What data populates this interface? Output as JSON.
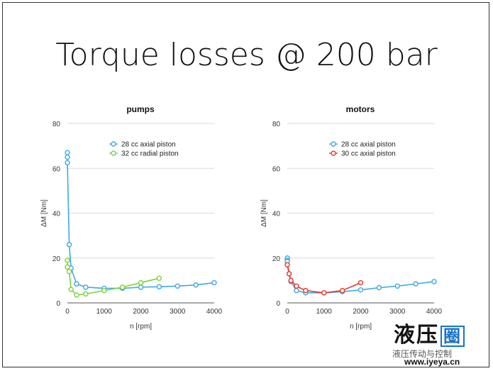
{
  "slide": {
    "title": "Torque losses @ 200 bar"
  },
  "watermark": {
    "logo_text": "液压",
    "logo_box_text": "圈",
    "channel": "液压传动与控制",
    "url": "www.iyeya.cn"
  },
  "colors": {
    "blue": "#3ea9e6",
    "green": "#7ed23b",
    "red": "#e8392a",
    "grid": "#d8d8d8",
    "axis": "#555555"
  },
  "chart_data": [
    {
      "type": "line",
      "title": "pumps",
      "xlabel": "n [rpm]",
      "ylabel": "ΔM [Nm]",
      "xlim": [
        0,
        4000
      ],
      "ylim": [
        0,
        80
      ],
      "xticks": [
        "0",
        "1000",
        "2000",
        "3000",
        "4000"
      ],
      "yticks": [
        "0",
        "20",
        "40",
        "60",
        "80"
      ],
      "grid": "horizontal",
      "legend_position": "top",
      "series": [
        {
          "name": "28 cc axial piston",
          "color": "#3ea9e6",
          "points": [
            [
              0,
              67
            ],
            [
              0,
              65
            ],
            [
              0,
              62.5
            ],
            [
              50,
              26
            ],
            [
              100,
              15.5
            ],
            [
              250,
              8.5
            ],
            [
              500,
              7
            ],
            [
              1000,
              6.5
            ],
            [
              1500,
              6.5
            ],
            [
              2000,
              7
            ],
            [
              2500,
              7.2
            ],
            [
              3000,
              7.5
            ],
            [
              3500,
              8
            ],
            [
              4000,
              9
            ]
          ]
        },
        {
          "name": "32 cc radial piston",
          "color": "#7ed23b",
          "points": [
            [
              0,
              19
            ],
            [
              0,
              16
            ],
            [
              50,
              14
            ],
            [
              100,
              6
            ],
            [
              250,
              3.5
            ],
            [
              500,
              4
            ],
            [
              1000,
              5.5
            ],
            [
              1500,
              7
            ],
            [
              2000,
              9
            ],
            [
              2500,
              11
            ]
          ]
        }
      ]
    },
    {
      "type": "line",
      "title": "motors",
      "xlabel": "n [rpm]",
      "ylabel": "ΔM [Nm]",
      "xlim": [
        0,
        4000
      ],
      "ylim": [
        0,
        80
      ],
      "xticks": [
        "0",
        "1000",
        "2000",
        "3000",
        "4000"
      ],
      "yticks": [
        "0",
        "20",
        "40",
        "60",
        "80"
      ],
      "grid": "horizontal",
      "legend_position": "top",
      "series": [
        {
          "name": "28 cc axial piston",
          "color": "#3ea9e6",
          "points": [
            [
              0,
              20
            ],
            [
              0,
              19
            ],
            [
              0,
              18.5
            ],
            [
              50,
              13
            ],
            [
              100,
              9.5
            ],
            [
              250,
              5.5
            ],
            [
              500,
              4.5
            ],
            [
              1000,
              4.5
            ],
            [
              1500,
              5
            ],
            [
              2000,
              5.8
            ],
            [
              2500,
              6.8
            ],
            [
              3000,
              7.5
            ],
            [
              3500,
              8.5
            ],
            [
              4000,
              9.5
            ]
          ]
        },
        {
          "name": "30 cc axial piston",
          "color": "#e8392a",
          "points": [
            [
              0,
              17
            ],
            [
              50,
              13
            ],
            [
              100,
              10
            ],
            [
              250,
              7.5
            ],
            [
              500,
              5.5
            ],
            [
              1000,
              4.5
            ],
            [
              1500,
              5.5
            ],
            [
              2000,
              9
            ]
          ]
        }
      ]
    }
  ]
}
